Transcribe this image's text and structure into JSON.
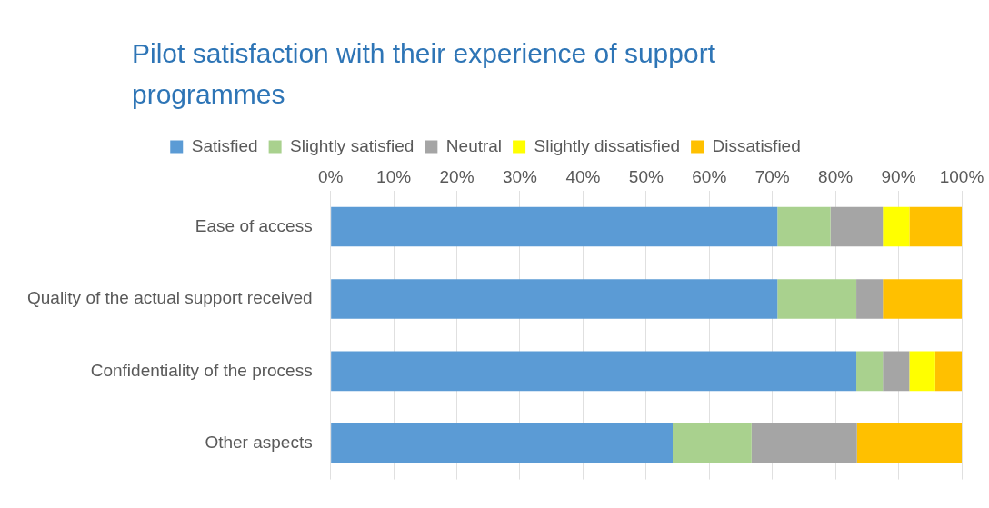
{
  "chart_data": {
    "type": "bar",
    "orientation": "horizontal",
    "stacked": true,
    "title": "Pilot satisfaction with their experience of support programmes",
    "categories": [
      "Ease of access",
      "Quality of the actual support received",
      "Confidentiality of the process",
      "Other aspects"
    ],
    "series": [
      {
        "name": "Satisfied",
        "color": "#5b9bd5",
        "values": [
          70.8,
          70.8,
          83.3,
          54.2
        ]
      },
      {
        "name": "Slightly satisfied",
        "color": "#a9d18e",
        "values": [
          8.4,
          12.5,
          4.2,
          12.5
        ]
      },
      {
        "name": "Neutral",
        "color": "#a5a5a5",
        "values": [
          8.3,
          4.2,
          4.2,
          16.7
        ]
      },
      {
        "name": "Slightly dissatisfied",
        "color": "#ffff00",
        "values": [
          4.2,
          0,
          4.1,
          0
        ]
      },
      {
        "name": "Dissatisfied",
        "color": "#ffc000",
        "values": [
          8.3,
          12.5,
          4.2,
          16.6
        ]
      }
    ],
    "xlim": [
      0,
      100
    ],
    "xticks": [
      {
        "value": 0,
        "label": "0%"
      },
      {
        "value": 10,
        "label": "10%"
      },
      {
        "value": 20,
        "label": "20%"
      },
      {
        "value": 30,
        "label": "30%"
      },
      {
        "value": 40,
        "label": "40%"
      },
      {
        "value": 50,
        "label": "50%"
      },
      {
        "value": 60,
        "label": "60%"
      },
      {
        "value": 70,
        "label": "70%"
      },
      {
        "value": 80,
        "label": "80%"
      },
      {
        "value": 90,
        "label": "90%"
      },
      {
        "value": 100,
        "label": "100%"
      }
    ],
    "grid": "x",
    "legend": "top"
  }
}
